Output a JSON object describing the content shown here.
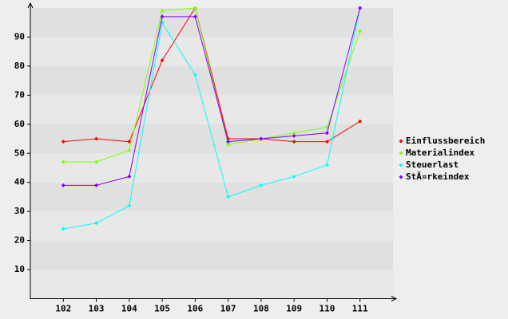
{
  "chart_data": {
    "type": "line",
    "categories": [
      "102",
      "103",
      "104",
      "105",
      "106",
      "107",
      "108",
      "109",
      "110",
      "111"
    ],
    "series": [
      {
        "name": "Einflussbereich",
        "color": "#ff0000",
        "values": [
          54,
          55,
          54,
          82,
          100,
          55,
          55,
          54,
          54,
          61
        ]
      },
      {
        "name": "Materialindex",
        "color": "#80ff00",
        "values": [
          47,
          47,
          51,
          99,
          100,
          53,
          55,
          57,
          59,
          92
        ]
      },
      {
        "name": "Steuerlast",
        "color": "#00ffff",
        "values": [
          24,
          26,
          32,
          95,
          77,
          35,
          39,
          42,
          46,
          100
        ]
      },
      {
        "name": "StÃ¤rkeindex",
        "color": "#8000ff",
        "values": [
          39,
          39,
          42,
          97,
          97,
          54,
          55,
          56,
          57,
          100
        ]
      }
    ],
    "ylim": [
      0,
      100
    ],
    "yticks": [
      10,
      20,
      30,
      40,
      50,
      60,
      70,
      80,
      90
    ],
    "grid": true,
    "legend": "right"
  }
}
